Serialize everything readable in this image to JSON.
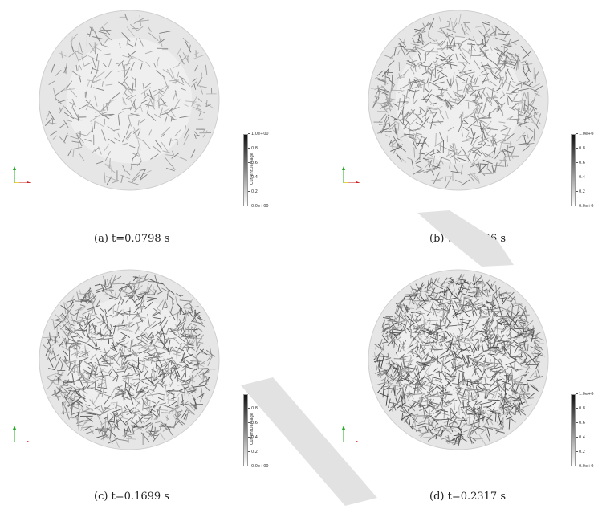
{
  "panels": [
    {
      "caption": "(a) t=0.0798 s",
      "density": 380,
      "darkness": 0.45,
      "colorbar_title": "CurrentDamage",
      "colorbar_ticks": [
        "1.0e+00",
        "0.8",
        "0.6",
        "0.4",
        "0.2",
        "0.0e+00"
      ]
    },
    {
      "caption": "(b) t=0.1236 s",
      "density": 800,
      "darkness": 0.6,
      "colorbar_title": "",
      "colorbar_ticks": [
        "1.0e+0(",
        "0.8",
        "0.6",
        "0.4",
        "0.2",
        "0.0e+0("
      ]
    },
    {
      "caption": "(c) t=0.1699 s",
      "density": 1150,
      "darkness": 0.75,
      "colorbar_title": "CurrentDamage",
      "colorbar_ticks": [
        "1.0e+00",
        "0.8",
        "0.6",
        "0.4",
        "0.2",
        "0.0e+00"
      ]
    },
    {
      "caption": "(d) t=0.2317 s",
      "density": 1500,
      "darkness": 0.85,
      "colorbar_title": "",
      "colorbar_ticks": [
        "1.0e+0(",
        "0.8",
        "0.6",
        "0.4",
        "0.2",
        "0.0e+0("
      ]
    }
  ],
  "colors": {
    "sphere_fill": "#e6e6e6",
    "sphere_edge": "#cfcfcf",
    "fiber": "#2a2a2a",
    "axis_x": "#cc2222",
    "axis_y": "#22aa22",
    "axis_z": "#e0c000",
    "watermark": "#d9d9d9"
  }
}
